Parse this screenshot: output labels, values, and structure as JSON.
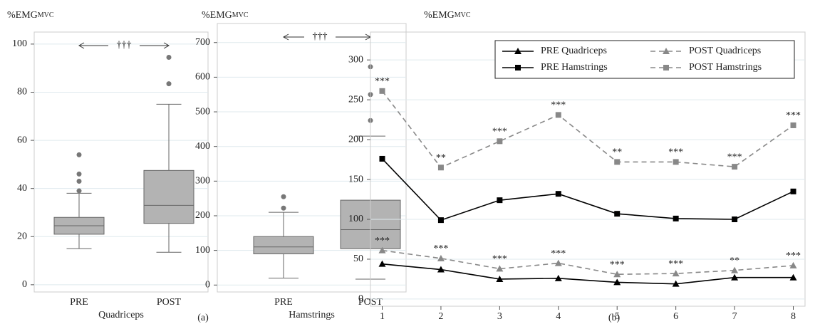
{
  "chart_data": [
    {
      "type": "box",
      "ylabel": "%EMG",
      "ylabel_sub": "MVC",
      "xlabel": "Quadriceps",
      "annotation": "†††",
      "categories": [
        "PRE",
        "POST"
      ],
      "color": "#b3b3b3",
      "boxes": [
        {
          "whisker_low": 15,
          "q1": 21,
          "median": 24.5,
          "q3": 28,
          "whisker_high": 38,
          "outliers": [
            39,
            43,
            46,
            54
          ]
        },
        {
          "whisker_low": 13.5,
          "q1": 25.5,
          "median": 33,
          "q3": 47.5,
          "whisker_high": 75,
          "outliers": [
            83.5,
            94.5
          ]
        }
      ],
      "ylim": [
        -3,
        105
      ],
      "yticks": [
        0,
        20,
        40,
        60,
        80,
        100
      ],
      "grid": true
    },
    {
      "type": "box",
      "ylabel": "%EMG",
      "ylabel_sub": "MVC",
      "xlabel": "Hamstrings",
      "annotation": "†††",
      "panel_label": "(a)",
      "categories": [
        "PRE",
        "POST"
      ],
      "color": "#b3b3b3",
      "boxes": [
        {
          "whisker_low": 20,
          "q1": 90,
          "median": 110,
          "q3": 140,
          "whisker_high": 210,
          "outliers": [
            222,
            255
          ]
        },
        {
          "whisker_low": 17,
          "q1": 105,
          "median": 160,
          "q3": 245,
          "whisker_high": 430,
          "outliers": [
            475,
            550,
            630
          ]
        }
      ],
      "ylim": [
        -20,
        755
      ],
      "yticks": [
        0,
        100,
        200,
        300,
        400,
        500,
        600,
        700
      ],
      "grid": true
    },
    {
      "type": "line",
      "ylabel": "%EMG",
      "ylabel_sub": "MVC",
      "panel_label": "(b)",
      "x": [
        1,
        2,
        3,
        4,
        5,
        6,
        7,
        8
      ],
      "xlim": [
        0.8,
        8.2
      ],
      "xticks": [
        1,
        2,
        3,
        4,
        5,
        6,
        7,
        8
      ],
      "ylim": [
        -9,
        335
      ],
      "yticks": [
        0,
        50,
        100,
        150,
        200,
        250,
        300
      ],
      "grid": true,
      "legend": "top-right",
      "series": [
        {
          "name": "PRE Quadriceps",
          "color": "#000000",
          "marker": "triangle",
          "dashed": false,
          "values": [
            44,
            37,
            25,
            26,
            21,
            19,
            27,
            27
          ]
        },
        {
          "name": "POST Quadriceps",
          "color": "#888888",
          "marker": "triangle",
          "dashed": true,
          "values": [
            61,
            51,
            38,
            45,
            31,
            32,
            36,
            42
          ],
          "point_labels": [
            "***",
            "***",
            "***",
            "***",
            "***",
            "***",
            "**",
            "***"
          ]
        },
        {
          "name": "PRE Hamstrings",
          "color": "#000000",
          "marker": "square",
          "dashed": false,
          "values": [
            176,
            99,
            124,
            132,
            107,
            101,
            100,
            135
          ]
        },
        {
          "name": "POST Hamstrings",
          "color": "#888888",
          "marker": "square",
          "dashed": true,
          "values": [
            261,
            165,
            198,
            231,
            172,
            172,
            166,
            218
          ],
          "point_labels": [
            "***",
            "**",
            "***",
            "***",
            "**",
            "***",
            "***",
            "***"
          ]
        }
      ]
    }
  ]
}
